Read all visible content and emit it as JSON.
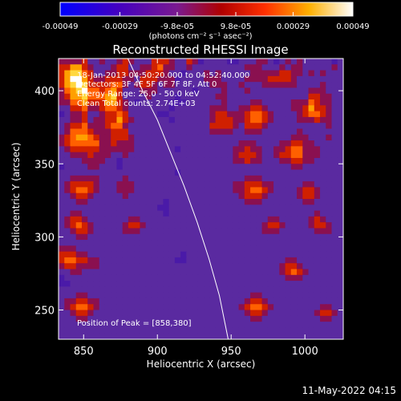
{
  "colorbar": {
    "ticks": [
      "-0.00049",
      "-0.00029",
      "-9.8e-05",
      "9.8e-05",
      "0.00029",
      "0.00049"
    ],
    "tick_values": [
      -0.00049,
      -0.00029,
      -9.8e-05,
      9.8e-05,
      0.00029,
      0.00049
    ],
    "units_text": "(photons cm⁻² s⁻¹ asec⁻²)",
    "colors": [
      "#0000ff",
      "#5a00a8",
      "#7a1080",
      "#c01000",
      "#ff5a00",
      "#ffd000",
      "#ffffff"
    ]
  },
  "annotations": {
    "time_range": "18-Jan-2013 04:50:20.000 to 04:52:40.000",
    "detectors": "Detectors: 3F 4F 5F 6F 7F 8F, Att 0",
    "energy": "Energy Range: 25.0 - 50.0 keV",
    "clean": "Clean     Total counts: 2.74E+03",
    "peak": "Position of Peak = [858,380]"
  },
  "datestamp": "11-May-2022 04:15",
  "chart_data": {
    "type": "heatmap",
    "title": "Reconstructed RHESSI Image",
    "xlabel": "Heliocentric X (arcsec)",
    "ylabel": "Heliocentric Y (arcsec)",
    "xlim": [
      833,
      1026
    ],
    "ylim": [
      230,
      422
    ],
    "xticks": [
      850,
      900,
      950,
      1000
    ],
    "yticks": [
      250,
      300,
      350,
      400
    ],
    "peak_position": [
      858,
      380
    ],
    "limb_curve": [
      [
        880,
        422
      ],
      [
        890,
        400
      ],
      [
        900,
        380
      ],
      [
        910,
        355
      ],
      [
        918,
        335
      ],
      [
        927,
        310
      ],
      [
        935,
        285
      ],
      [
        942,
        260
      ],
      [
        948,
        230
      ]
    ],
    "grid_step_arcsec": 4,
    "grid": [
      "3333422322343222444322431222211222332123232222212",
      "4466432223442233453322322222222233322232332222232",
      "4677542233443334443221222323222223333344332323222",
      "4688643344433244433312222333222233334444322222222",
      "4679744445532344323322222233322322233333322223222",
      "3567855456422233322222212222322232222222222333222",
      "3466755567422223222212222223322222222222222443322",
      "3355644466432122222111222222322223322222333543322",
      "2244533455432222222122222233322334432222334644322",
      "1233422344542222211222222234433345543222234554322",
      "2233423344643222222122222234443345543222233343322",
      "2344533345532222222222222244443244432222222222322",
      "2355543334442222222222222233332233322222232222222",
      "3456654334443222222222222222222222222222333222322",
      "3455555334333222222222222222222333222233443322222",
      "2344444333333222222212222222223343322334553332222",
      "2233343332232222222222222222223444322344553332222",
      "2222333322122222222222222222223343322233443322222",
      "1222233222122222222222222222222222222222332222222",
      "2222222222222222222212222222222222222222222222222",
      "2233333222232222222222222222222233322222222222222",
      "2344443222333222222222222222223344433222223322222",
      "2345543222333222222222222222223345543222234432222",
      "2234432222232222222222222222222344432222234432222",
      "2223322222222222221222222222222233322222223322222",
      "2222222222222222211222222222222222222222222222222",
      "2233222222222222221222222222222222222222222232222",
      "2344322222223322222222222222222222223322222343222",
      "2345432222234432222222222222222222234432222344322",
      "2234432222233322222222222222222222233322222233322",
      "2223322222222222222222222222222222222222222222222",
      "2222222222222222222222222222222222222222222222222",
      "3332222222222222222222222222222222222222222222222",
      "4443322222222222222221222222222222222222222222222",
      "4554433222222222222211222222222222222223322222222",
      "3443333222222222222222222222222222222234432222222",
      "2233222222222222222222222222222222222234543222222",
      "1222222222222222222222222222222222222223332222222",
      "1122222222222222222222222222222222222222222222222",
      "2222222222222222222222222222222222222222222222222",
      "2223322222222222222222222222222223322222222222222",
      "2334433222222222222222222222222234432222222222222",
      "2345543222222222222222222222222345543222222223322",
      "2234432222222222222222222222222234432222222234432",
      "2223322222222222222222222222222223322222222223322",
      "2222222222222222222222222222222222222222222222222",
      "2222222222222222222222222222222222222222222222222",
      "2222222222222222222222222222222222222222222222222"
    ],
    "grid_value_map": [
      "#2020d8",
      "#4a1aa8",
      "#5a2aa0",
      "#8a1050",
      "#d02000",
      "#ff6000",
      "#ffa000",
      "#ffd840",
      "#ffffff",
      "#ffffff"
    ]
  }
}
